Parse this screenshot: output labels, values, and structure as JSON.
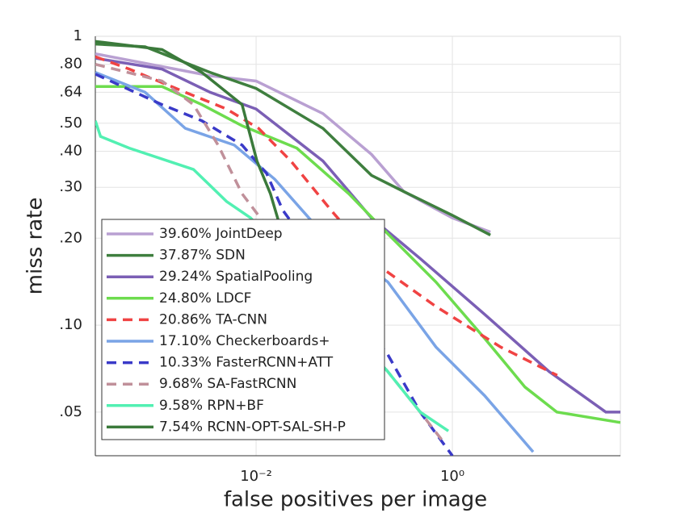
{
  "chart_data": {
    "type": "line",
    "xscale": "log",
    "yscale": "log",
    "grid": true,
    "legend": "lower left",
    "xlabel": "false positives per image",
    "ylabel": "miss rate",
    "xlim": [
      0.00023,
      51.5
    ],
    "ylim": [
      0.0353,
      1
    ],
    "xticks": [
      {
        "value": 0.01,
        "label": "10⁻²"
      },
      {
        "value": 1,
        "label": "10⁰"
      }
    ],
    "yticks": [
      1,
      {
        "value": 0.8,
        "label": ".80"
      },
      {
        "value": 0.64,
        "label": ".64"
      },
      {
        "value": 0.5,
        "label": ".50"
      },
      {
        "value": 0.4,
        "label": ".40"
      },
      {
        "value": 0.3,
        "label": ".30"
      },
      {
        "value": 0.2,
        "label": ".20"
      },
      {
        "value": 0.1,
        "label": ".10"
      },
      {
        "value": 0.05,
        "label": ".05"
      }
    ],
    "series": [
      {
        "name": "39.60% JointDeep",
        "color": "#b9a0d2",
        "dashed": false,
        "x": [
          0.00023,
          0.0034,
          0.01,
          0.048,
          0.15,
          0.32,
          1,
          2.44
        ],
        "values": [
          0.87,
          0.73,
          0.7,
          0.54,
          0.39,
          0.29,
          0.235,
          0.21
        ]
      },
      {
        "name": "37.87% SDN",
        "color": "#3f7f3f",
        "dashed": false,
        "x": [
          0.00023,
          0.00074,
          0.0034,
          0.01,
          0.048,
          0.15,
          0.32,
          1,
          2.44
        ],
        "values": [
          0.94,
          0.92,
          0.75,
          0.66,
          0.48,
          0.33,
          0.29,
          0.24,
          0.205
        ]
      },
      {
        "name": "29.24% SpatialPooling",
        "color": "#7b5fb5",
        "dashed": false,
        "x": [
          0.00023,
          0.0011,
          0.0034,
          0.01,
          0.048,
          0.15,
          0.47,
          2.13,
          9.7,
          36.6,
          51.5
        ],
        "values": [
          0.84,
          0.77,
          0.64,
          0.56,
          0.37,
          0.235,
          0.17,
          0.109,
          0.069,
          0.05,
          0.05
        ]
      },
      {
        "name": "24.80% LDCF",
        "color": "#6ddc4e",
        "dashed": false,
        "x": [
          0.00023,
          0.0011,
          0.0028,
          0.0072,
          0.026,
          0.088,
          0.22,
          0.68,
          2.13,
          5.5,
          11.6,
          51.5
        ],
        "values": [
          0.67,
          0.67,
          0.58,
          0.49,
          0.41,
          0.285,
          0.207,
          0.141,
          0.09,
          0.061,
          0.05,
          0.046
        ]
      },
      {
        "name": "20.86% TA-CNN",
        "color": "#f04343",
        "dashed": true,
        "x": [
          0.00023,
          0.00051,
          0.0019,
          0.005,
          0.0106,
          0.0226,
          0.058,
          0.18,
          0.68,
          3.1,
          11.7
        ],
        "values": [
          0.85,
          0.77,
          0.64,
          0.56,
          0.48,
          0.37,
          0.25,
          0.16,
          0.116,
          0.084,
          0.067
        ]
      },
      {
        "name": "17.10% Checkerboards+",
        "color": "#7aa4e6",
        "dashed": false,
        "x": [
          0.00023,
          0.00074,
          0.0019,
          0.006,
          0.0155,
          0.048,
          0.22,
          0.68,
          2.13,
          6.65
        ],
        "values": [
          0.75,
          0.64,
          0.48,
          0.42,
          0.32,
          0.207,
          0.141,
          0.084,
          0.057,
          0.0364
        ]
      },
      {
        "name": "10.33% FasterRCNN+ATT",
        "color": "#3a3ac8",
        "dashed": true,
        "x": [
          0.00023,
          0.0011,
          0.0028,
          0.0072,
          0.0128,
          0.0187,
          0.22,
          0.47,
          1
        ],
        "values": [
          0.74,
          0.58,
          0.51,
          0.42,
          0.335,
          0.25,
          0.079,
          0.05,
          0.0353
        ]
      },
      {
        "name": "9.68% SA-FastRCNN",
        "color": "#c0909a",
        "dashed": true,
        "x": [
          0.00023,
          0.0011,
          0.0023,
          0.0041,
          0.0072,
          0.0128,
          0.22,
          0.47,
          0.83
        ],
        "values": [
          0.8,
          0.7,
          0.58,
          0.42,
          0.285,
          0.22,
          0.069,
          0.05,
          0.039
        ]
      },
      {
        "name": "9.58% RPN+BF",
        "color": "#52f0b2",
        "dashed": false,
        "x": [
          0.00023,
          0.00026,
          0.00051,
          0.0023,
          0.005,
          0.0088,
          0.22,
          0.47,
          0.91
        ],
        "values": [
          0.51,
          0.45,
          0.41,
          0.346,
          0.268,
          0.235,
          0.069,
          0.05,
          0.043
        ]
      },
      {
        "name": "7.54% RCNN-OPT-SAL-SH-P",
        "color": "#3b7a3b",
        "dashed": false,
        "x": [
          0.00023,
          0.0011,
          0.0028,
          0.0072,
          0.0102,
          0.014,
          0.017
        ],
        "values": [
          0.96,
          0.9,
          0.75,
          0.58,
          0.37,
          0.285,
          0.228
        ]
      }
    ]
  }
}
